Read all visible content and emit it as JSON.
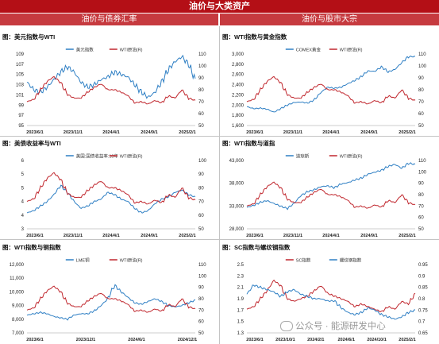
{
  "page": {
    "title": "油价与大类资产",
    "left_section": "油价与债券汇率",
    "right_section": "油价与股市大宗",
    "watermark": "公众号 · 能源研发中心"
  },
  "chart_data": [
    {
      "type": "line",
      "title": "图：美元指数与WTI",
      "x_ticks": [
        "2023/6/1",
        "2023/11/1",
        "2024/4/1",
        "2024/9/1",
        "2025/2/1"
      ],
      "left_ticks": [
        "95",
        "97",
        "99",
        "101",
        "103",
        "105",
        "107",
        "109"
      ],
      "right_ticks": [
        "50",
        "60",
        "70",
        "80",
        "90",
        "100",
        "110"
      ],
      "left_range": [
        95,
        109
      ],
      "right_range": [
        50,
        110
      ],
      "series": [
        {
          "name": "美元指数",
          "axis": "left",
          "color": "#2e7fc4",
          "values": [
            103.5,
            102.0,
            101.5,
            102.5,
            104.0,
            105.5,
            106.5,
            105.5,
            103.5,
            102.5,
            103.0,
            104.0,
            104.5,
            105.5,
            105.0,
            104.5,
            103.0,
            101.5,
            100.5,
            101.5,
            103.5,
            106.0,
            107.5,
            108.5,
            107.0,
            104.0
          ]
        },
        {
          "name": "WTI原油(R)",
          "axis": "right",
          "color": "#c0262d",
          "values": [
            70,
            72,
            80,
            87,
            91,
            86,
            76,
            73,
            73,
            78,
            82,
            85,
            80,
            80,
            78,
            75,
            69,
            70,
            68,
            71,
            69,
            75,
            73,
            80,
            73,
            71
          ]
        }
      ]
    },
    {
      "type": "line",
      "title": "图：WTI指数与黄金指数",
      "x_ticks": [
        "2023/6/1",
        "2023/11/1",
        "2024/4/1",
        "2024/9/1",
        "2025/2/1"
      ],
      "left_ticks": [
        "1,600",
        "1,800",
        "2,000",
        "2,200",
        "2,400",
        "2,600",
        "2,800",
        "3,000"
      ],
      "right_ticks": [
        "50",
        "60",
        "70",
        "80",
        "90",
        "100",
        "110"
      ],
      "left_range": [
        1600,
        3000
      ],
      "right_range": [
        50,
        110
      ],
      "series": [
        {
          "name": "COMEX黄金",
          "axis": "left",
          "color": "#2e7fc4",
          "values": [
            1970,
            1930,
            1940,
            1920,
            1860,
            1930,
            2000,
            2050,
            2060,
            2040,
            2100,
            2250,
            2350,
            2330,
            2350,
            2420,
            2480,
            2560,
            2670,
            2660,
            2750,
            2650,
            2700,
            2830,
            2950,
            2950
          ]
        },
        {
          "name": "WTI原油(R)",
          "axis": "right",
          "color": "#c0262d",
          "values": [
            70,
            72,
            80,
            87,
            91,
            86,
            76,
            73,
            73,
            78,
            82,
            85,
            80,
            80,
            78,
            75,
            69,
            70,
            68,
            71,
            69,
            75,
            73,
            80,
            73,
            71
          ]
        }
      ]
    },
    {
      "type": "line",
      "title": "图：美债收益率与WTI",
      "x_ticks": [
        "2023/6/1",
        "2023/11/1",
        "2024/4/1",
        "2024/9/1",
        "2025/2/1"
      ],
      "left_ticks": [
        "3",
        "4",
        "4",
        "5",
        "5",
        "6"
      ],
      "right_ticks": [
        "50",
        "60",
        "70",
        "80",
        "90",
        "100"
      ],
      "left_range": [
        3.0,
        6.0
      ],
      "right_range": [
        50,
        100
      ],
      "series": [
        {
          "name": "美国:国债收益率:10年",
          "axis": "left",
          "color": "#2e7fc4",
          "values": [
            3.7,
            3.8,
            4.0,
            4.2,
            4.5,
            4.9,
            4.6,
            4.2,
            3.9,
            4.0,
            4.2,
            4.3,
            4.6,
            4.5,
            4.3,
            4.2,
            3.9,
            3.7,
            3.8,
            4.1,
            4.3,
            4.4,
            4.6,
            4.7,
            4.5,
            4.4
          ]
        },
        {
          "name": "WTI原油(R)",
          "axis": "right",
          "color": "#c0262d",
          "values": [
            70,
            72,
            80,
            87,
            91,
            86,
            76,
            73,
            73,
            78,
            82,
            85,
            80,
            80,
            78,
            75,
            69,
            70,
            68,
            71,
            69,
            75,
            73,
            80,
            73,
            71
          ]
        }
      ]
    },
    {
      "type": "line",
      "title": "图：WTI指数与道指",
      "x_ticks": [
        "2023/6/1",
        "2023/11/1",
        "2024/4/1",
        "2024/9/1",
        "2025/2/1"
      ],
      "left_ticks": [
        "28,000",
        "33,000",
        "38,000",
        "43,000"
      ],
      "right_ticks": [
        "50",
        "60",
        "70",
        "80",
        "90",
        "100",
        "110"
      ],
      "left_range": [
        28000,
        45500
      ],
      "right_range": [
        50,
        110
      ],
      "series": [
        {
          "name": "道琼斯",
          "axis": "left",
          "color": "#2e7fc4",
          "values": [
            33500,
            34000,
            34800,
            35200,
            34500,
            33800,
            33200,
            34500,
            36500,
            37500,
            38000,
            38800,
            39000,
            38500,
            39500,
            39800,
            40500,
            41000,
            42000,
            42500,
            43000,
            44000,
            44500,
            43500,
            44800,
            44500
          ]
        },
        {
          "name": "WTI原油(R)",
          "axis": "right",
          "color": "#c0262d",
          "values": [
            70,
            72,
            80,
            87,
            91,
            86,
            76,
            73,
            73,
            78,
            82,
            85,
            80,
            80,
            78,
            75,
            69,
            70,
            68,
            71,
            69,
            75,
            73,
            80,
            73,
            71
          ]
        }
      ]
    },
    {
      "type": "line",
      "title": "图：WTI指数与铜指数",
      "x_ticks": [
        "2023/6/1",
        "2023/12/1",
        "2024/6/1",
        "2024/12/1"
      ],
      "left_ticks": [
        "7,000",
        "8,000",
        "9,000",
        "10,000",
        "11,000",
        "12,000"
      ],
      "right_ticks": [
        "50",
        "60",
        "70",
        "80",
        "90",
        "100",
        "110"
      ],
      "left_range": [
        7000,
        12000
      ],
      "right_range": [
        50,
        110
      ],
      "series": [
        {
          "name": "LME铜",
          "axis": "left",
          "color": "#2e7fc4",
          "values": [
            8300,
            8400,
            8500,
            8400,
            8200,
            8100,
            8000,
            8300,
            8400,
            8400,
            8600,
            9000,
            9500,
            10500,
            10000,
            9600,
            9200,
            9100,
            9300,
            9500,
            9300,
            9000,
            8900,
            9000,
            9200,
            9400
          ]
        },
        {
          "name": "WTI原油(R)",
          "axis": "right",
          "color": "#c0262d",
          "values": [
            70,
            72,
            80,
            87,
            91,
            86,
            76,
            73,
            73,
            78,
            82,
            85,
            80,
            80,
            78,
            75,
            69,
            70,
            68,
            71,
            69,
            75,
            73,
            80,
            73,
            71
          ]
        }
      ]
    },
    {
      "type": "line",
      "title": "图：SC指数与螺纹钢指数",
      "x_ticks": [
        "2023/6/1",
        "2023/10/1",
        "2024/2/1",
        "2024/6/1",
        "2024/10/1",
        "2025/2/1"
      ],
      "left_ticks": [
        "1.3",
        "1.5",
        "1.7",
        "1.9",
        "2.1",
        "2.3",
        "2.5"
      ],
      "right_ticks": [
        "0.65",
        "0.7",
        "0.75",
        "0.8",
        "0.85",
        "0.9",
        "0.95"
      ],
      "left_range": [
        1.3,
        2.6
      ],
      "right_range": [
        0.65,
        0.95
      ],
      "series": [
        {
          "name": "SC指数",
          "axis": "left",
          "color": "#c0262d",
          "values": [
            1.75,
            1.8,
            1.95,
            2.1,
            2.3,
            2.2,
            1.95,
            1.9,
            1.95,
            2.0,
            2.1,
            2.2,
            2.05,
            2.0,
            1.95,
            1.9,
            1.8,
            1.85,
            1.8,
            1.75,
            1.7,
            1.8,
            1.75,
            1.9,
            1.85,
            2.05
          ]
        },
        {
          "name": "螺纹钢指数",
          "axis": "right",
          "color": "#2e7fc4",
          "values": [
            0.82,
            0.86,
            0.85,
            0.84,
            0.83,
            0.81,
            0.83,
            0.84,
            0.82,
            0.81,
            0.8,
            0.8,
            0.79,
            0.79,
            0.76,
            0.74,
            0.73,
            0.74,
            0.76,
            0.75,
            0.73,
            0.72,
            0.71,
            0.72,
            0.74,
            0.75
          ]
        }
      ]
    }
  ]
}
